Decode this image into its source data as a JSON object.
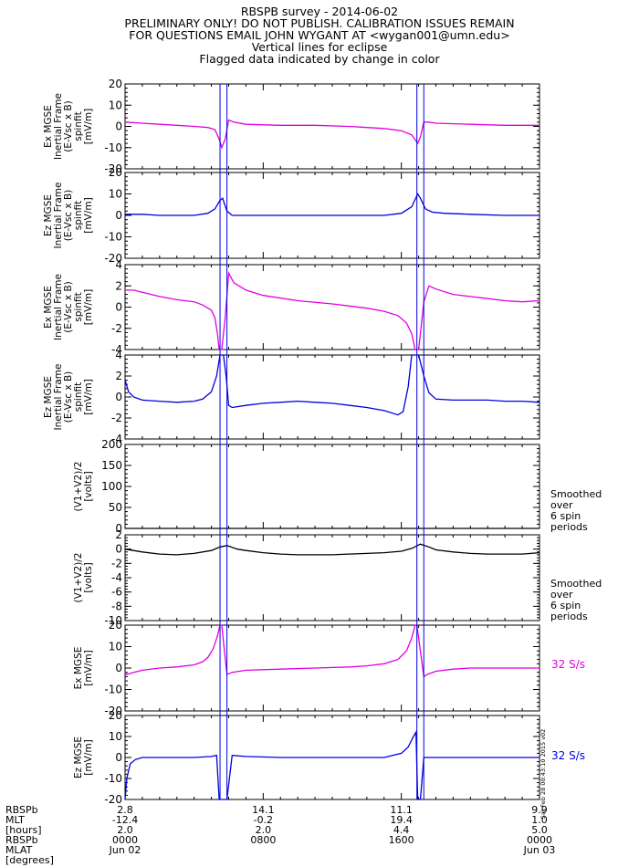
{
  "header": {
    "lines": [
      "RBSPB survey - 2014-06-02",
      "PRELIMINARY ONLY! DO NOT PUBLISH. CALIBRATION ISSUES REMAIN",
      "FOR QUESTIONS EMAIL JOHN WYGANT AT <wygan001@umn.edu>",
      "Vertical lines for eclipse",
      "Flagged data indicated by change in color"
    ]
  },
  "colors": {
    "magenta": "#e000e0",
    "blue": "#0000e0",
    "black": "#000000",
    "eclipse": "#0000e0",
    "side_magenta": "#e000e0",
    "side_blue": "#0000e0"
  },
  "eclipse_lines_hours": [
    5.5,
    5.9,
    16.9,
    17.3
  ],
  "side_labels": {
    "smooth1": [
      "Smoothed",
      "over",
      "6 spin",
      "periods"
    ],
    "smooth2": [
      "Smoothed",
      "over",
      "6 spin",
      "periods"
    ],
    "rate1": "32 S/s",
    "rate2": "32 S/s"
  },
  "timestamp": "Sat Feb 28 00:43:10 2015 v02",
  "chart_data": [
    {
      "type": "line",
      "ylabel": [
        "Ex MGSE",
        "Inertial Frame",
        "(E-Vsc x B)",
        "spinfit",
        "[mV/m]"
      ],
      "ylim": [
        -20,
        20
      ],
      "yticks": [
        -20,
        -10,
        0,
        10,
        20
      ],
      "color": "magenta",
      "series": [
        {
          "x": [
            0,
            1,
            2,
            3,
            4,
            4.8,
            5.2,
            5.45,
            5.6,
            5.8,
            6.0,
            6.3,
            7,
            9,
            11,
            13,
            14,
            15,
            16,
            16.6,
            16.95,
            17.1,
            17.3,
            17.6,
            18,
            20,
            22,
            24
          ],
          "y": [
            2,
            1.5,
            1,
            0.5,
            0,
            -0.5,
            -1.5,
            -6,
            -10,
            -6,
            3,
            2,
            1,
            0.5,
            0.5,
            0,
            -0.5,
            -1,
            -2,
            -4,
            -8,
            -5,
            2,
            2,
            1.5,
            1,
            0.5,
            0.5
          ]
        }
      ]
    },
    {
      "type": "line",
      "ylabel": [
        "Ez MGSE",
        "Inertial Frame",
        "(E-Vsc x B)",
        "spinfit",
        "[mV/m]"
      ],
      "ylim": [
        -20,
        20
      ],
      "yticks": [
        -20,
        -10,
        0,
        10,
        20
      ],
      "color": "blue",
      "series": [
        {
          "x": [
            0,
            1,
            2,
            3,
            4,
            4.8,
            5.2,
            5.5,
            5.65,
            5.9,
            6.2,
            7,
            9,
            11,
            13,
            15,
            16,
            16.6,
            16.95,
            17.1,
            17.4,
            17.8,
            18.5,
            20,
            22,
            24
          ],
          "y": [
            0.5,
            0.5,
            0,
            0,
            0,
            1,
            3,
            7,
            8,
            2,
            0,
            0,
            0,
            0,
            0,
            0,
            1,
            4,
            10,
            8,
            3,
            1.5,
            1,
            0.5,
            0,
            0
          ]
        }
      ]
    },
    {
      "type": "line",
      "ylabel": [
        "Ex MGSE",
        "Inertial Frame",
        "(E-Vsc x B)",
        "spinfit",
        "[mV/m]"
      ],
      "ylim": [
        -4,
        4
      ],
      "yticks": [
        -4,
        -2,
        0,
        2,
        4
      ],
      "color": "magenta",
      "series": [
        {
          "x": [
            0,
            0.5,
            1,
            2,
            3,
            4,
            4.5,
            5,
            5.2,
            5.35,
            5.45,
            5.6,
            5.8,
            6.0,
            6.3,
            7,
            8,
            10,
            12,
            13,
            14,
            15,
            15.8,
            16.3,
            16.6,
            16.8,
            17.0,
            17.3,
            17.6,
            18,
            19,
            20,
            21,
            22,
            23,
            24
          ],
          "y": [
            1.6,
            1.6,
            1.4,
            1,
            0.7,
            0.5,
            0.2,
            -0.3,
            -1,
            -2.5,
            -4,
            -4,
            -1,
            3.2,
            2.3,
            1.6,
            1.1,
            0.6,
            0.3,
            0.1,
            -0.1,
            -0.4,
            -0.8,
            -1.5,
            -2.5,
            -4,
            -4,
            0.5,
            2,
            1.7,
            1.2,
            1,
            0.8,
            0.6,
            0.5,
            0.6
          ]
        }
      ]
    },
    {
      "type": "line",
      "ylabel": [
        "Ez MGSE",
        "Inertial Frame",
        "(E-Vsc x B)",
        "spinfit",
        "[mV/m]"
      ],
      "ylim": [
        -4,
        4
      ],
      "yticks": [
        -4,
        -2,
        0,
        2,
        4
      ],
      "color": "blue",
      "series": [
        {
          "x": [
            0,
            0.2,
            0.5,
            1,
            2,
            3,
            4,
            4.5,
            5,
            5.3,
            5.5,
            5.7,
            5.85,
            6.0,
            6.2,
            7,
            8,
            9,
            10,
            11,
            12,
            13,
            14,
            15,
            15.8,
            16.1,
            16.4,
            16.6,
            16.8,
            17.0,
            17.3,
            17.6,
            18,
            19,
            20,
            21,
            22,
            23,
            24
          ],
          "y": [
            1.6,
            0.5,
            0,
            -0.3,
            -0.4,
            -0.5,
            -0.4,
            -0.2,
            0.5,
            2,
            4,
            4,
            2,
            -0.8,
            -1,
            -0.8,
            -0.6,
            -0.5,
            -0.4,
            -0.5,
            -0.6,
            -0.8,
            -1,
            -1.3,
            -1.7,
            -1.4,
            1,
            4,
            4,
            4,
            2,
            0.4,
            -0.2,
            -0.3,
            -0.3,
            -0.3,
            -0.4,
            -0.4,
            -0.5
          ]
        }
      ]
    },
    {
      "type": "line",
      "ylabel": [
        "(V1+V2)/2",
        "[volts]"
      ],
      "ylim": [
        0,
        200
      ],
      "yticks": [
        0,
        50,
        100,
        150,
        200
      ],
      "color": "black",
      "series": [
        {
          "x": [
            0,
            24
          ],
          "y": [
            0,
            0
          ]
        }
      ]
    },
    {
      "type": "line",
      "ylabel": [
        "(V1+V2)/2",
        "[volts]"
      ],
      "ylim": [
        -10,
        2
      ],
      "yticks": [
        -10,
        -8,
        -6,
        -4,
        -2,
        0,
        2
      ],
      "color": "black",
      "series": [
        {
          "x": [
            0,
            1,
            2,
            3,
            4,
            5,
            5.5,
            5.9,
            6.5,
            7,
            8,
            9,
            10,
            11,
            12,
            13,
            14,
            15,
            16,
            16.6,
            17.1,
            17.6,
            18,
            19,
            20,
            21,
            22,
            23,
            24
          ],
          "y": [
            0,
            -0.4,
            -0.7,
            -0.8,
            -0.6,
            -0.2,
            0.3,
            0.5,
            0,
            -0.2,
            -0.5,
            -0.7,
            -0.8,
            -0.8,
            -0.8,
            -0.7,
            -0.6,
            -0.5,
            -0.3,
            0.1,
            0.7,
            0.3,
            -0.1,
            -0.4,
            -0.6,
            -0.7,
            -0.7,
            -0.7,
            -0.5
          ]
        }
      ]
    },
    {
      "type": "line",
      "ylabel": [
        "Ex MGSE",
        "[mV/m]"
      ],
      "ylim": [
        -20,
        20
      ],
      "yticks": [
        -20,
        -10,
        0,
        10,
        20
      ],
      "color": "magenta",
      "series": [
        {
          "x": [
            0,
            0.1,
            0.5,
            1,
            2,
            3,
            4,
            4.5,
            4.8,
            5.1,
            5.35,
            5.5,
            5.6,
            5.9,
            6.2,
            7,
            9,
            11,
            13,
            14,
            15,
            15.8,
            16.3,
            16.6,
            16.8,
            16.9,
            17.3,
            17.5,
            18,
            19,
            20,
            22,
            24
          ],
          "y": [
            -2,
            -3,
            -2,
            -1,
            0,
            0.5,
            1.5,
            3,
            5,
            9,
            15,
            20,
            20,
            -3,
            -2,
            -1,
            -0.5,
            0,
            0.5,
            1,
            2,
            4,
            8,
            14,
            20,
            20,
            -4,
            -3,
            -1.5,
            -0.5,
            0,
            0,
            0
          ]
        }
      ]
    },
    {
      "type": "line",
      "ylabel": [
        "Ez MGSE",
        "[mV/m]"
      ],
      "ylim": [
        -20,
        20
      ],
      "yticks": [
        -20,
        -10,
        0,
        10,
        20
      ],
      "color": "blue",
      "series": [
        {
          "x": [
            0,
            0.1,
            0.3,
            0.6,
            1,
            2,
            3,
            4,
            5,
            5.3,
            5.45,
            5.55,
            5.75,
            5.9,
            6.2,
            7,
            9,
            11,
            13,
            15,
            16,
            16.4,
            16.7,
            16.85,
            16.95,
            17.1,
            17.3,
            17.5,
            18,
            20,
            22,
            24
          ],
          "y": [
            -20,
            -10,
            -3,
            -1,
            0,
            0,
            0,
            0,
            0.5,
            1,
            -20,
            -20,
            -20,
            -20,
            1,
            0.5,
            0,
            0,
            0,
            0,
            2,
            5,
            10,
            12,
            -20,
            -20,
            0,
            0,
            0,
            0,
            0,
            0
          ]
        }
      ]
    }
  ],
  "xaxis": {
    "rows": [
      "RBSPb MLT [hours]",
      "RBSPb MLAT [degrees]"
    ],
    "row_labels": [
      "RBSPb",
      "MLT",
      "[hours]",
      "RBSPb",
      "MLAT",
      "[degrees]"
    ],
    "ticks": [
      {
        "lines": [
          "2.8",
          "-12.4",
          "2.0",
          "0000",
          "Jun 02"
        ]
      },
      {
        "lines": [
          "14.1",
          "-0.2",
          "2.0",
          "0800",
          ""
        ]
      },
      {
        "lines": [
          "11.1",
          "19.4",
          "4.4",
          "1600",
          ""
        ]
      },
      {
        "lines": [
          "9.9",
          "1.0",
          "5.0",
          "0000",
          "Jun 03"
        ]
      }
    ],
    "tick_hours": [
      0,
      8,
      16,
      24
    ]
  }
}
